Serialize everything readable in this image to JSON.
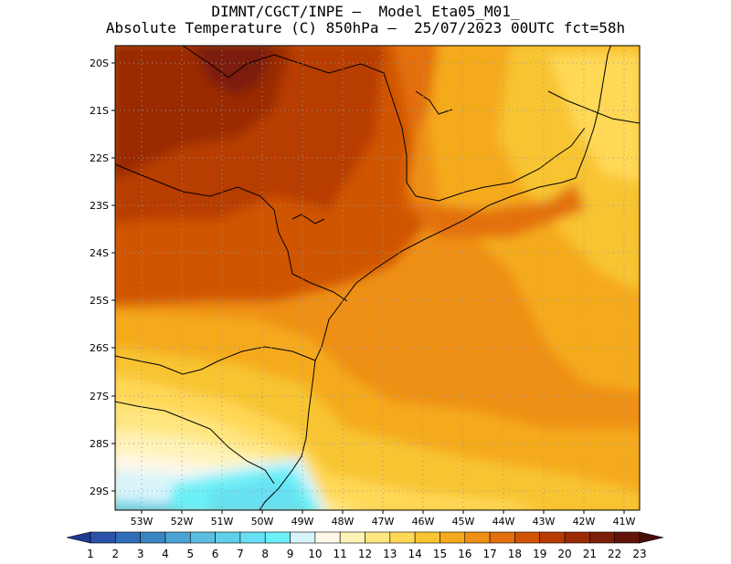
{
  "title": {
    "line1": "DIMNT/CGCT/INPE –  Model Eta05_M01_",
    "line2": "Absolute Temperature (C) 850hPa –  25/07/2023 00UTC fct=58h"
  },
  "axes": {
    "lat_labels": [
      "20S",
      "21S",
      "22S",
      "23S",
      "24S",
      "25S",
      "26S",
      "27S",
      "28S",
      "29S"
    ],
    "lon_labels": [
      "53W",
      "52W",
      "51W",
      "50W",
      "49W",
      "48W",
      "47W",
      "46W",
      "45W",
      "44W",
      "43W",
      "42W",
      "41W"
    ]
  },
  "colorbar": {
    "labels": [
      "1",
      "2",
      "3",
      "4",
      "5",
      "6",
      "7",
      "8",
      "9",
      "10",
      "11",
      "12",
      "13",
      "14",
      "15",
      "16",
      "17",
      "18",
      "19",
      "20",
      "21",
      "22",
      "23"
    ],
    "colors": [
      "#1f3a93",
      "#2a52a8",
      "#2f6db8",
      "#3a86c4",
      "#4aa3d2",
      "#5bbde0",
      "#5fd0e8",
      "#66e0f2",
      "#6cf0f8",
      "#d8f4fb",
      "#fff8e8",
      "#fff3b8",
      "#ffe680",
      "#ffd856",
      "#f8c433",
      "#f5aa1e",
      "#ee9015",
      "#e3700b",
      "#d05404",
      "#b83c02",
      "#9a2b04",
      "#7c1e08",
      "#62140a",
      "#4a0c08"
    ]
  }
}
